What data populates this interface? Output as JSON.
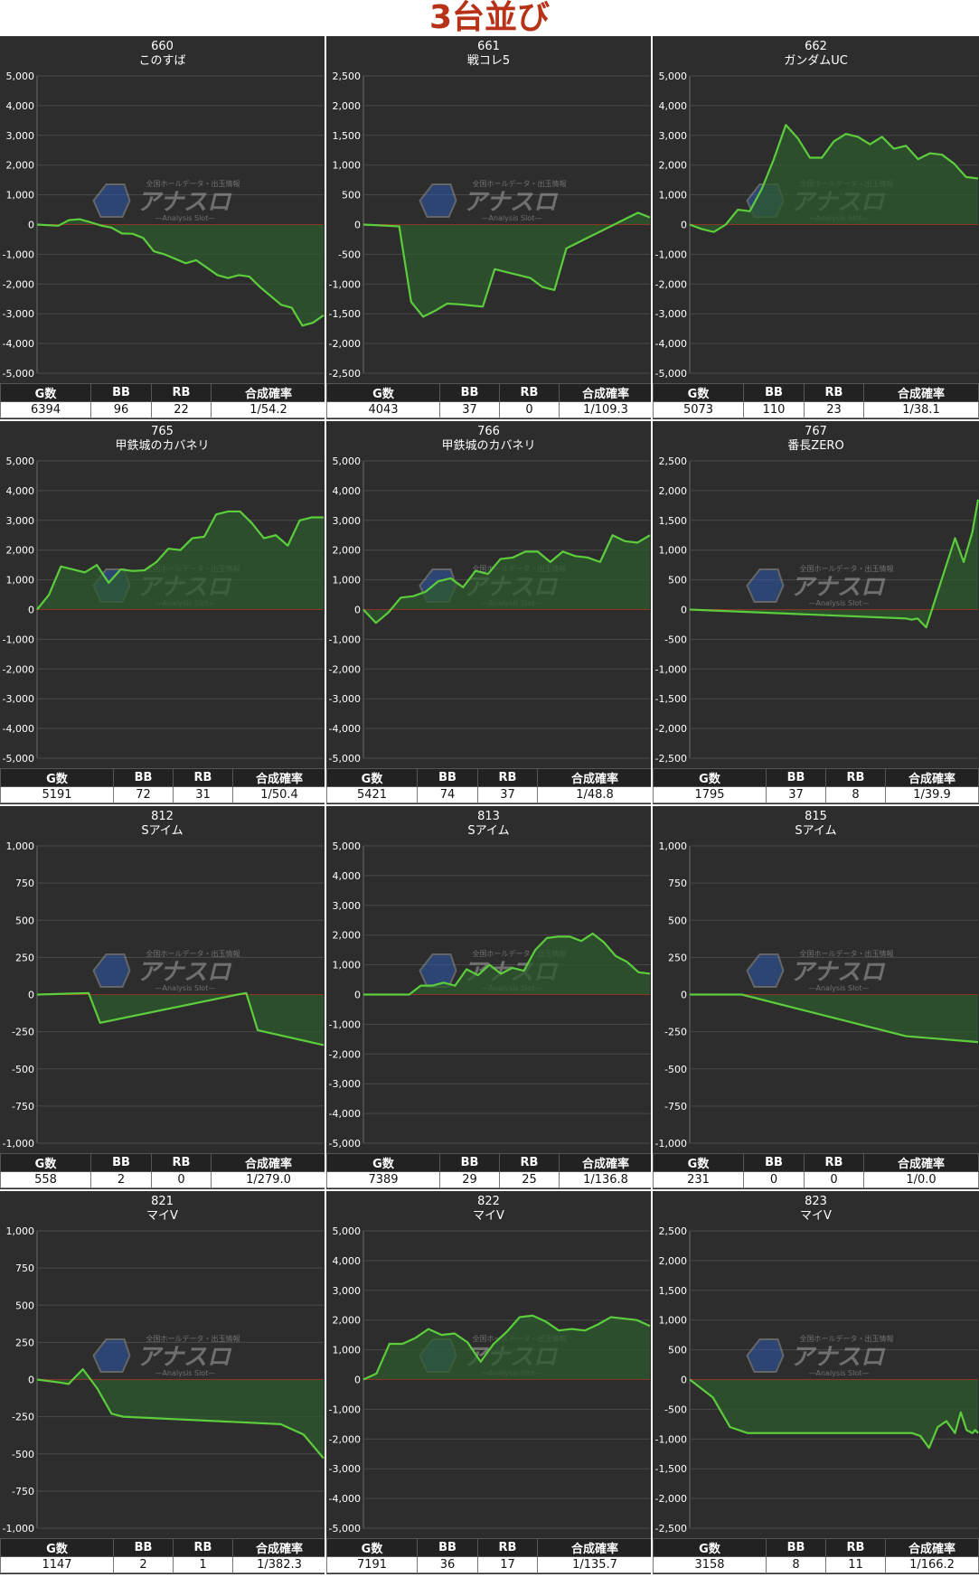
{
  "page_title": "3台並び",
  "stats_headers": [
    "G数",
    "BB",
    "RB",
    "合成確率"
  ],
  "watermark": {
    "brand": "アナスロ",
    "sub": "—Analysis Slot—",
    "tagline": "全国ホールデータ・出玉情報"
  },
  "colors": {
    "line": "#5ccd3c",
    "fill": "#2e5a2e",
    "zero": "#c41e1e",
    "grid": "#4a4a4a",
    "panel": "#2d2d2d"
  },
  "chart_data": [
    {
      "type": "line",
      "number": "660",
      "machine": "このすば",
      "ylim": [
        -5000,
        5000
      ],
      "yticks": [
        "5,000",
        "4,000",
        "3,000",
        "2,000",
        "1,000",
        "0",
        "-1,000",
        "-2,000",
        "-3,000",
        "-4,000",
        "-5,000"
      ],
      "y": [
        0,
        -20,
        -40,
        150,
        180,
        80,
        -30,
        -100,
        -300,
        -310,
        -450,
        -900,
        -1000,
        -1150,
        -1300,
        -1200,
        -1450,
        -1700,
        -1800,
        -1700,
        -1750,
        -2100,
        -2400,
        -2700,
        -2800,
        -3400,
        -3300,
        -3050
      ],
      "stats": [
        "6394",
        "96",
        "22",
        "1/54.2"
      ]
    },
    {
      "type": "line",
      "number": "661",
      "machine": "戦コレ5",
      "ylim": [
        -2500,
        2500
      ],
      "yticks": [
        "2,500",
        "2,000",
        "1,500",
        "1,000",
        "500",
        "0",
        "-500",
        "-1,000",
        "-1,500",
        "-2,000",
        "-2,500"
      ],
      "y": [
        0,
        -10,
        -20,
        -30,
        -1300,
        -1550,
        -1450,
        -1330,
        -1340,
        -1360,
        -1380,
        -750,
        -800,
        -850,
        -900,
        -1050,
        -1100,
        -400,
        -300,
        -200,
        -100,
        0,
        100,
        200,
        120
      ],
      "stats": [
        "4043",
        "37",
        "0",
        "1/109.3"
      ]
    },
    {
      "type": "line",
      "number": "662",
      "machine": "ガンダムUC",
      "ylim": [
        -5000,
        5000
      ],
      "yticks": [
        "5,000",
        "4,000",
        "3,000",
        "2,000",
        "1,000",
        "0",
        "-1,000",
        "-2,000",
        "-3,000",
        "-4,000",
        "-5,000"
      ],
      "y": [
        0,
        -150,
        -250,
        0,
        500,
        450,
        1200,
        2200,
        3350,
        2900,
        2250,
        2250,
        2800,
        3050,
        2950,
        2700,
        2950,
        2550,
        2650,
        2200,
        2400,
        2350,
        2050,
        1600,
        1550
      ],
      "stats": [
        "5073",
        "110",
        "23",
        "1/38.1"
      ]
    },
    {
      "type": "line",
      "number": "765",
      "machine": "甲鉄城のカバネリ",
      "ylim": [
        -5000,
        5000
      ],
      "yticks": [
        "5,000",
        "4,000",
        "3,000",
        "2,000",
        "1,000",
        "0",
        "-1,000",
        "-2,000",
        "-3,000",
        "-4,000",
        "-5,000"
      ],
      "y": [
        0,
        500,
        1450,
        1350,
        1250,
        1500,
        900,
        1350,
        1300,
        1320,
        1600,
        2050,
        2000,
        2400,
        2450,
        3200,
        3300,
        3300,
        2900,
        2400,
        2500,
        2150,
        3000,
        3100,
        3100
      ],
      "stats": [
        "5191",
        "72",
        "31",
        "1/50.4"
      ]
    },
    {
      "type": "line",
      "number": "766",
      "machine": "甲鉄城のカバネリ",
      "ylim": [
        -5000,
        5000
      ],
      "yticks": [
        "5,000",
        "4,000",
        "3,000",
        "2,000",
        "1,000",
        "0",
        "-1,000",
        "-2,000",
        "-3,000",
        "-4,000",
        "-5,000"
      ],
      "y": [
        0,
        -450,
        -100,
        400,
        450,
        600,
        950,
        1050,
        750,
        1300,
        1200,
        1700,
        1750,
        1950,
        1950,
        1600,
        1950,
        1800,
        1750,
        1600,
        2500,
        2300,
        2250,
        2500
      ],
      "stats": [
        "5421",
        "74",
        "37",
        "1/48.8"
      ]
    },
    {
      "type": "line",
      "number": "767",
      "machine": "番長ZERO",
      "ylim": [
        -2500,
        2500
      ],
      "yticks": [
        "2,500",
        "2,000",
        "1,500",
        "1,000",
        "500",
        "0",
        "-500",
        "-1,000",
        "-1,500",
        "-2,000",
        "-2,500"
      ],
      "y": [
        0,
        -150,
        -170,
        -150,
        -300,
        1200,
        800,
        1300,
        1850
      ],
      "x": [
        0,
        0.75,
        0.77,
        0.79,
        0.82,
        0.92,
        0.95,
        0.98,
        1.0
      ],
      "stats": [
        "1795",
        "37",
        "8",
        "1/39.9"
      ]
    },
    {
      "type": "line",
      "number": "812",
      "machine": "Sアイム",
      "ylim": [
        -1000,
        1000
      ],
      "yticks": [
        "1,000",
        "750",
        "500",
        "250",
        "0",
        "-250",
        "-500",
        "-750",
        "-1,000"
      ],
      "y": [
        0,
        10,
        -190,
        0,
        10,
        -240,
        -340
      ],
      "x": [
        0,
        0.18,
        0.22,
        0.7,
        0.73,
        0.77,
        1.0
      ],
      "stats": [
        "558",
        "2",
        "0",
        "1/279.0"
      ]
    },
    {
      "type": "line",
      "number": "813",
      "machine": "Sアイム",
      "ylim": [
        -5000,
        5000
      ],
      "yticks": [
        "5,000",
        "4,000",
        "3,000",
        "2,000",
        "1,000",
        "0",
        "-1,000",
        "-2,000",
        "-3,000",
        "-4,000",
        "-5,000"
      ],
      "y": [
        0,
        0,
        0,
        0,
        0,
        300,
        300,
        400,
        300,
        850,
        650,
        1000,
        700,
        900,
        800,
        1500,
        1900,
        1950,
        1950,
        1800,
        2050,
        1750,
        1300,
        1100,
        750,
        700
      ],
      "stats": [
        "7389",
        "29",
        "25",
        "1/136.8"
      ]
    },
    {
      "type": "line",
      "number": "815",
      "machine": "Sアイム",
      "ylim": [
        -1000,
        1000
      ],
      "yticks": [
        "1,000",
        "750",
        "500",
        "250",
        "0",
        "-250",
        "-500",
        "-750",
        "-1,000"
      ],
      "y": [
        0,
        0,
        0,
        -280,
        -320
      ],
      "x": [
        0,
        0.1,
        0.18,
        0.75,
        1.0
      ],
      "stats": [
        "231",
        "0",
        "0",
        "1/0.0"
      ]
    },
    {
      "type": "line",
      "number": "821",
      "machine": "マイV",
      "ylim": [
        -1000,
        1000
      ],
      "yticks": [
        "1,000",
        "750",
        "500",
        "250",
        "0",
        "-250",
        "-500",
        "-750",
        "-1,000"
      ],
      "y": [
        0,
        -20,
        -30,
        70,
        -60,
        -230,
        -250,
        -300,
        -370,
        -530
      ],
      "x": [
        0,
        0.08,
        0.11,
        0.16,
        0.21,
        0.26,
        0.3,
        0.85,
        0.93,
        1.0
      ],
      "stats": [
        "1147",
        "2",
        "1",
        "1/382.3"
      ]
    },
    {
      "type": "line",
      "number": "822",
      "machine": "マイV",
      "ylim": [
        -5000,
        5000
      ],
      "yticks": [
        "5,000",
        "4,000",
        "3,000",
        "2,000",
        "1,000",
        "0",
        "-1,000",
        "-2,000",
        "-3,000",
        "-4,000",
        "-5,000"
      ],
      "y": [
        0,
        200,
        1200,
        1200,
        1400,
        1700,
        1500,
        1550,
        1250,
        600,
        1200,
        1600,
        2100,
        2150,
        1950,
        1650,
        1700,
        1650,
        1850,
        2100,
        2050,
        2000,
        1800
      ],
      "stats": [
        "7191",
        "36",
        "17",
        "1/135.7"
      ]
    },
    {
      "type": "line",
      "number": "823",
      "machine": "マイV",
      "ylim": [
        -2500,
        2500
      ],
      "yticks": [
        "2,500",
        "2,000",
        "1,500",
        "1,000",
        "500",
        "0",
        "-500",
        "-1,000",
        "-1,500",
        "-2,000",
        "-2,500"
      ],
      "y": [
        0,
        -150,
        -300,
        -550,
        -800,
        -900,
        -900,
        -900,
        -900,
        -900,
        -900,
        -900,
        -900,
        -950,
        -1150,
        -800,
        -700,
        -900,
        -550,
        -850,
        -900,
        -850,
        -900
      ],
      "x": [
        0,
        0.04,
        0.08,
        0.11,
        0.14,
        0.2,
        0.3,
        0.4,
        0.5,
        0.6,
        0.7,
        0.75,
        0.77,
        0.8,
        0.83,
        0.86,
        0.89,
        0.92,
        0.94,
        0.96,
        0.98,
        0.99,
        1.0
      ],
      "stats": [
        "3158",
        "8",
        "11",
        "1/166.2"
      ]
    }
  ]
}
